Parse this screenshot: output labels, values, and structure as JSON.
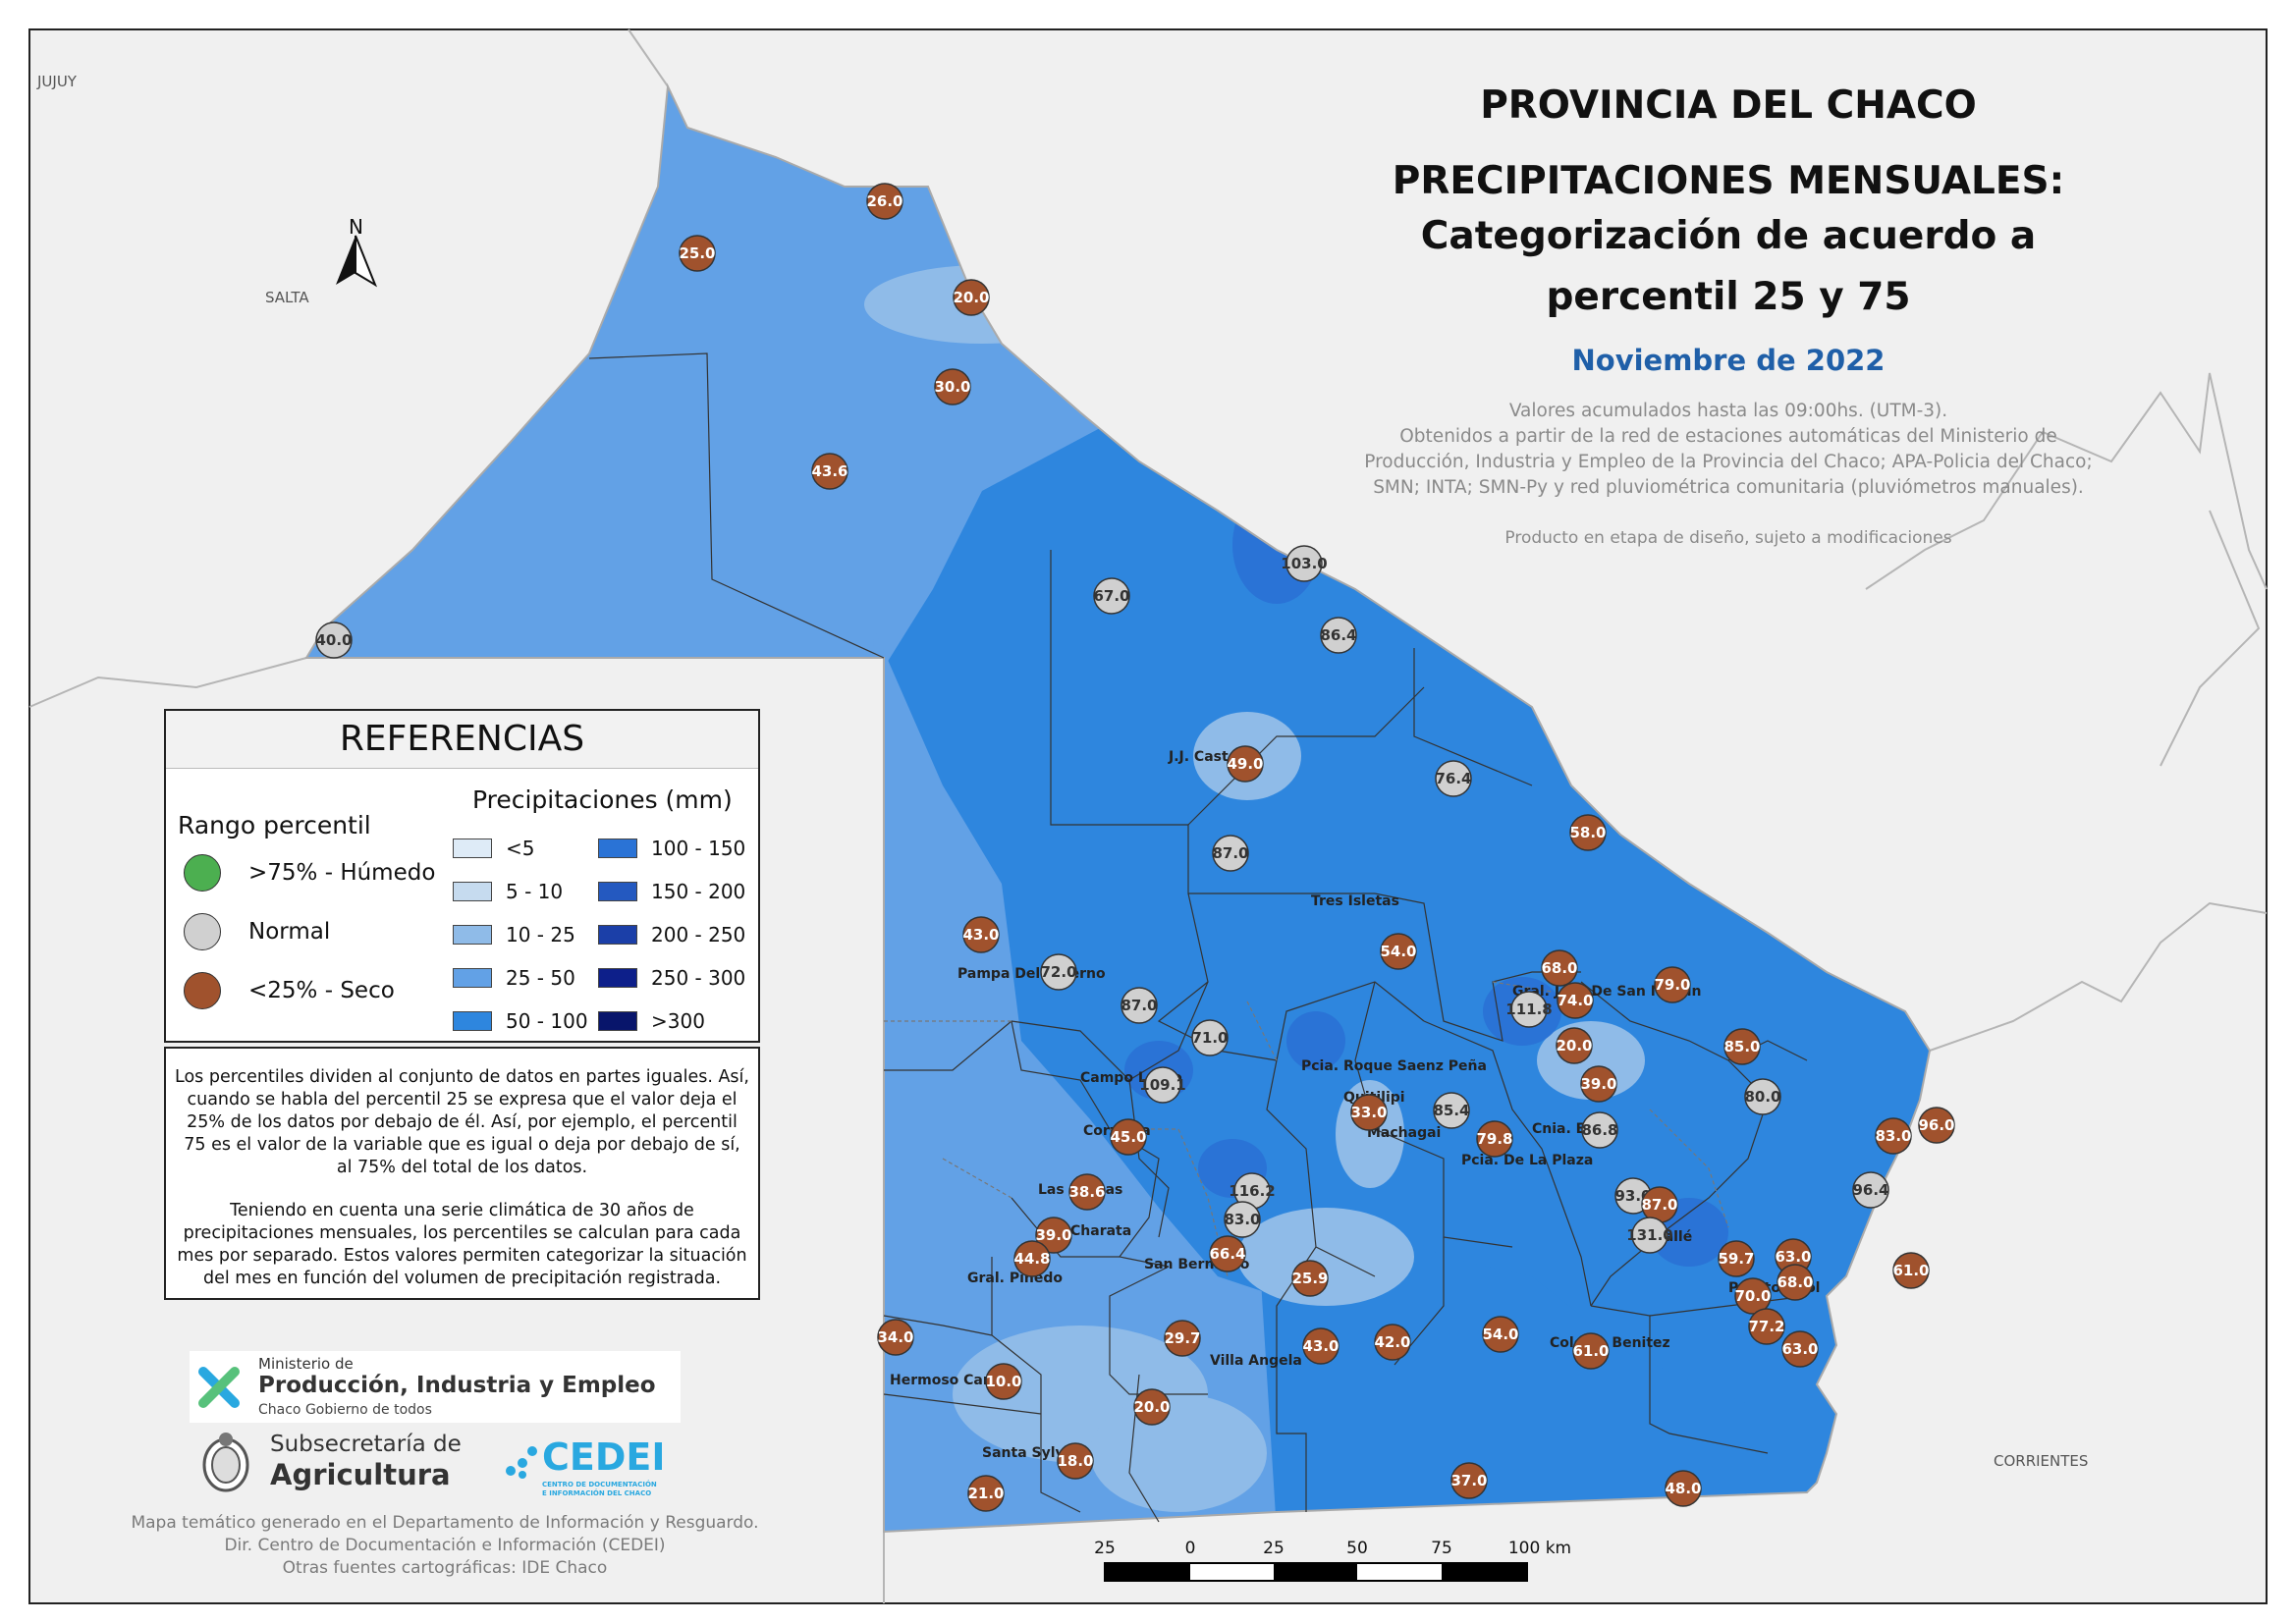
{
  "header": {
    "title_1": "PROVINCIA DEL CHACO",
    "title_2": "PRECIPITACIONES MENSUALES:",
    "title_3": "Categorización de acuerdo a",
    "title_4": "percentil 25 y 75",
    "month": "Noviembre de 2022",
    "source_1": "Valores acumulados hasta las 09:00hs. (UTM-3).",
    "source_2": "Obtenidos a partir de la red de estaciones automáticas del Ministerio de",
    "source_3": "Producción, Industria y Empleo de la Provincia del Chaco; APA-Policia del Chaco;",
    "source_4": "SMN; INTA; SMN-Py y red pluviométrica comunitaria (pluviómetros manuales).",
    "draft_note": "Producto en etapa de diseño, sujeto a modificaciones"
  },
  "neighbors": {
    "jujuy": "JUJUY",
    "salta": "SALTA",
    "corrientes": "CORRIENTES"
  },
  "north_arrow": {
    "label": "N"
  },
  "legend": {
    "title": "REFERENCIAS",
    "percentile_title": "Rango percentil",
    "percentile_items": [
      {
        "label": ">75% - Húmedo",
        "color": "#4caf50"
      },
      {
        "label": "Normal",
        "color": "#d0d0d0"
      },
      {
        "label": "<25% - Seco",
        "color": "#a0522d"
      }
    ],
    "precip_title": "Precipitaciones (mm)",
    "precip_items": [
      {
        "label": "<5",
        "color": "#deebf7"
      },
      {
        "label": "5 - 10",
        "color": "#c6dbef"
      },
      {
        "label": "10 - 25",
        "color": "#8fbbe8"
      },
      {
        "label": "25 - 50",
        "color": "#62a1e6"
      },
      {
        "label": "50 - 100",
        "color": "#2e86de"
      },
      {
        "label": "100 - 150",
        "color": "#2a73d6"
      },
      {
        "label": "150 - 200",
        "color": "#2459c0"
      },
      {
        "label": "200 - 250",
        "color": "#1b3fa8"
      },
      {
        "label": "250 - 300",
        "color": "#0d1f8a"
      },
      {
        "label": ">300",
        "color": "#08156b"
      }
    ]
  },
  "note": {
    "p1": "Los percentiles dividen al conjunto de datos en partes iguales. Así, cuando se habla del percentil 25 se expresa que el valor deja el 25% de los datos por debajo de él. Así, por ejemplo, el percentil 75 es el valor de la variable que es igual o deja por debajo de sí, al 75% del total de los datos.",
    "p2": "Teniendo en cuenta una serie climática de 30 años de precipitaciones mensuales, los percentiles se calculan para cada mes por separado. Estos valores permiten categorizar la situación del mes en función del volumen de precipitación registrada."
  },
  "logos": {
    "ministry_small": "Ministerio de",
    "ministry_big": "Producción, Industria y Empleo",
    "ministry_sub": "Chaco Gobierno de todos",
    "subsec_1": "Subsecretaría de",
    "subsec_2": "Agricultura",
    "cedei": "CEDEI",
    "cedei_sub_1": "CENTRO DE DOCUMENTACIÓN",
    "cedei_sub_2": "E INFORMACIÓN DEL CHACO"
  },
  "footer": {
    "line1": "Mapa temático generado en el Departamento de Información y Resguardo.",
    "line2": "Dir. Centro de Documentación e Información (CEDEI)",
    "line3": "Otras fuentes cartográficas: IDE Chaco"
  },
  "scale": {
    "labels": [
      "25",
      "0",
      "25",
      "50",
      "75",
      "100 km"
    ]
  },
  "colors": {
    "dry": "#a0522d",
    "normal": "#d0d0d0",
    "humid": "#4caf50",
    "month": "#1f5fa8"
  },
  "place_labels": [
    "J.J. Castelli",
    "Tres Isletas",
    "Pampa Del Infierno",
    "Gral. Jose De San Martin",
    "Campo Largo",
    "Pcia. Roque Saenz Peña",
    "Quitilipi",
    "Machagai",
    "Corzuela",
    "Cnia. Elisa",
    "Pcia. De La Plaza",
    "Las Breñas",
    "Charata",
    "San Bernardo",
    "Gral. Pinedo",
    "Makallé",
    "Puerto Tirol",
    "Villa Angela",
    "Hermoso Campo",
    "Colonia Benitez",
    "Santa Sylvina"
  ],
  "stations": [
    {
      "value": "26.0",
      "category": "dry"
    },
    {
      "value": "25.0",
      "category": "dry"
    },
    {
      "value": "20.0",
      "category": "dry"
    },
    {
      "value": "30.0",
      "category": "dry"
    },
    {
      "value": "43.6",
      "category": "dry"
    },
    {
      "value": "40.0",
      "category": "normal"
    },
    {
      "value": "103.0",
      "category": "normal"
    },
    {
      "value": "67.0",
      "category": "normal"
    },
    {
      "value": "86.4",
      "category": "normal"
    },
    {
      "value": "49.0",
      "category": "dry"
    },
    {
      "value": "76.4",
      "category": "normal"
    },
    {
      "value": "58.0",
      "category": "dry"
    },
    {
      "value": "87.0",
      "category": "normal"
    },
    {
      "value": "54.0",
      "category": "dry"
    },
    {
      "value": "43.0",
      "category": "dry"
    },
    {
      "value": "72.0",
      "category": "normal"
    },
    {
      "value": "68.0",
      "category": "dry"
    },
    {
      "value": "79.0",
      "category": "dry"
    },
    {
      "value": "111.8",
      "category": "normal"
    },
    {
      "value": "74.0",
      "category": "dry"
    },
    {
      "value": "87.0",
      "category": "normal"
    },
    {
      "value": "71.0",
      "category": "normal"
    },
    {
      "value": "85.0",
      "category": "dry"
    },
    {
      "value": "20.0",
      "category": "dry"
    },
    {
      "value": "109.1",
      "category": "normal"
    },
    {
      "value": "39.0",
      "category": "dry"
    },
    {
      "value": "80.0",
      "category": "normal"
    },
    {
      "value": "33.0",
      "category": "dry"
    },
    {
      "value": "85.4",
      "category": "normal"
    },
    {
      "value": "79.8",
      "category": "dry"
    },
    {
      "value": "86.8",
      "category": "normal"
    },
    {
      "value": "96.0",
      "category": "dry"
    },
    {
      "value": "83.0",
      "category": "dry"
    },
    {
      "value": "45.0",
      "category": "dry"
    },
    {
      "value": "116.2",
      "category": "normal"
    },
    {
      "value": "96.4",
      "category": "normal"
    },
    {
      "value": "38.6",
      "category": "dry"
    },
    {
      "value": "93.0",
      "category": "normal"
    },
    {
      "value": "87.0",
      "category": "dry"
    },
    {
      "value": "83.0",
      "category": "normal"
    },
    {
      "value": "39.0",
      "category": "dry"
    },
    {
      "value": "131.0",
      "category": "normal"
    },
    {
      "value": "66.4",
      "category": "dry"
    },
    {
      "value": "44.8",
      "category": "dry"
    },
    {
      "value": "59.7",
      "category": "dry"
    },
    {
      "value": "63.0",
      "category": "dry"
    },
    {
      "value": "25.9",
      "category": "dry"
    },
    {
      "value": "70.0",
      "category": "dry"
    },
    {
      "value": "68.0",
      "category": "dry"
    },
    {
      "value": "61.0",
      "category": "dry"
    },
    {
      "value": "77.2",
      "category": "dry"
    },
    {
      "value": "34.0",
      "category": "dry"
    },
    {
      "value": "29.7",
      "category": "dry"
    },
    {
      "value": "43.0",
      "category": "dry"
    },
    {
      "value": "42.0",
      "category": "dry"
    },
    {
      "value": "54.0",
      "category": "dry"
    },
    {
      "value": "61.0",
      "category": "dry"
    },
    {
      "value": "63.0",
      "category": "dry"
    },
    {
      "value": "10.0",
      "category": "dry"
    },
    {
      "value": "20.0",
      "category": "dry"
    },
    {
      "value": "18.0",
      "category": "dry"
    },
    {
      "value": "37.0",
      "category": "dry"
    },
    {
      "value": "48.0",
      "category": "dry"
    },
    {
      "value": "21.0",
      "category": "dry"
    }
  ]
}
